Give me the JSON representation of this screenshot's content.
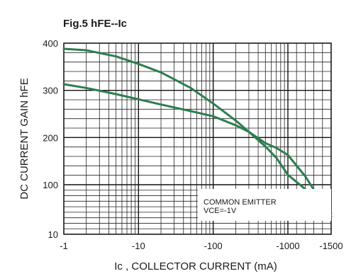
{
  "chart_data": {
    "type": "line",
    "title": "Fig.5   hFE--Ic",
    "xlabel": "Ic , COLLECTOR CURRENT (mA)",
    "ylabel": "DC CURRENT GAIN hFE",
    "x_scale": "log",
    "y_scale": "custom",
    "xlim": [
      -1,
      -1500
    ],
    "ylim": [
      10,
      400
    ],
    "x_ticks": [
      {
        "value": -1,
        "label": "-1"
      },
      {
        "value": -10,
        "label": "-10"
      },
      {
        "value": -100,
        "label": "-100"
      },
      {
        "value": -1000,
        "label": "-1000"
      },
      {
        "value": -1500,
        "label": "-1500"
      }
    ],
    "y_ticks": [
      {
        "value": 10,
        "label": "10"
      },
      {
        "value": 100,
        "label": "100"
      },
      {
        "value": 200,
        "label": "200"
      },
      {
        "value": 300,
        "label": "300"
      },
      {
        "value": 400,
        "label": "400"
      }
    ],
    "grid": true,
    "line_color": "#2e7d4f",
    "series": [
      {
        "x": [
          -1,
          -2,
          -5,
          -10,
          -20,
          -50,
          -100,
          -200,
          -300,
          -500,
          -700,
          -1000,
          -1200,
          -1500
        ],
        "y": [
          388,
          385,
          372,
          356,
          338,
          305,
          272,
          236,
          212,
          181,
          157,
          121,
          92,
          48
        ]
      },
      {
        "x": [
          -1,
          -2,
          -5,
          -10,
          -20,
          -50,
          -100,
          -200,
          -300,
          -500,
          -700,
          -1000,
          -1200,
          -1500
        ],
        "y": [
          313,
          305,
          292,
          281,
          270,
          256,
          245,
          226,
          212,
          188,
          178,
          163,
          118,
          42
        ]
      }
    ],
    "annotation": {
      "line1": "COMMON EMITTER",
      "line2": "VCE=-1V"
    }
  }
}
